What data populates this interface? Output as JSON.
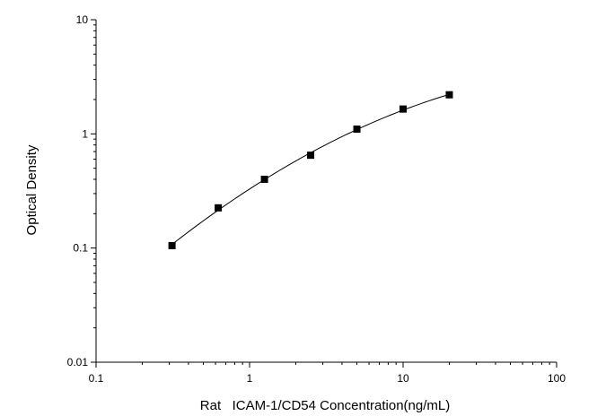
{
  "chart_data": {
    "type": "scatter",
    "title": "",
    "xlabel": "Rat   ICAM-1/CD54 Concentration(ng/mL)",
    "ylabel": "Optical Density",
    "xscale": "log",
    "yscale": "log",
    "xlim": [
      0.1,
      100
    ],
    "ylim": [
      0.01,
      10
    ],
    "x_ticks": [
      "0.1",
      "1",
      "10",
      "100"
    ],
    "y_ticks": [
      "0.01",
      "0.1",
      "1",
      "10"
    ],
    "grid": false,
    "legend": "none",
    "series": [
      {
        "marker": "square",
        "x": [
          0.3125,
          0.625,
          1.25,
          2.5,
          5,
          10,
          20
        ],
        "y": [
          0.105,
          0.225,
          0.4,
          0.65,
          1.1,
          1.65,
          2.2
        ]
      }
    ],
    "fit_curve": {
      "style": "smooth line",
      "x_range": [
        0.3125,
        20
      ]
    },
    "colors": {
      "marks": "#000000",
      "background": "#ffffff"
    }
  }
}
